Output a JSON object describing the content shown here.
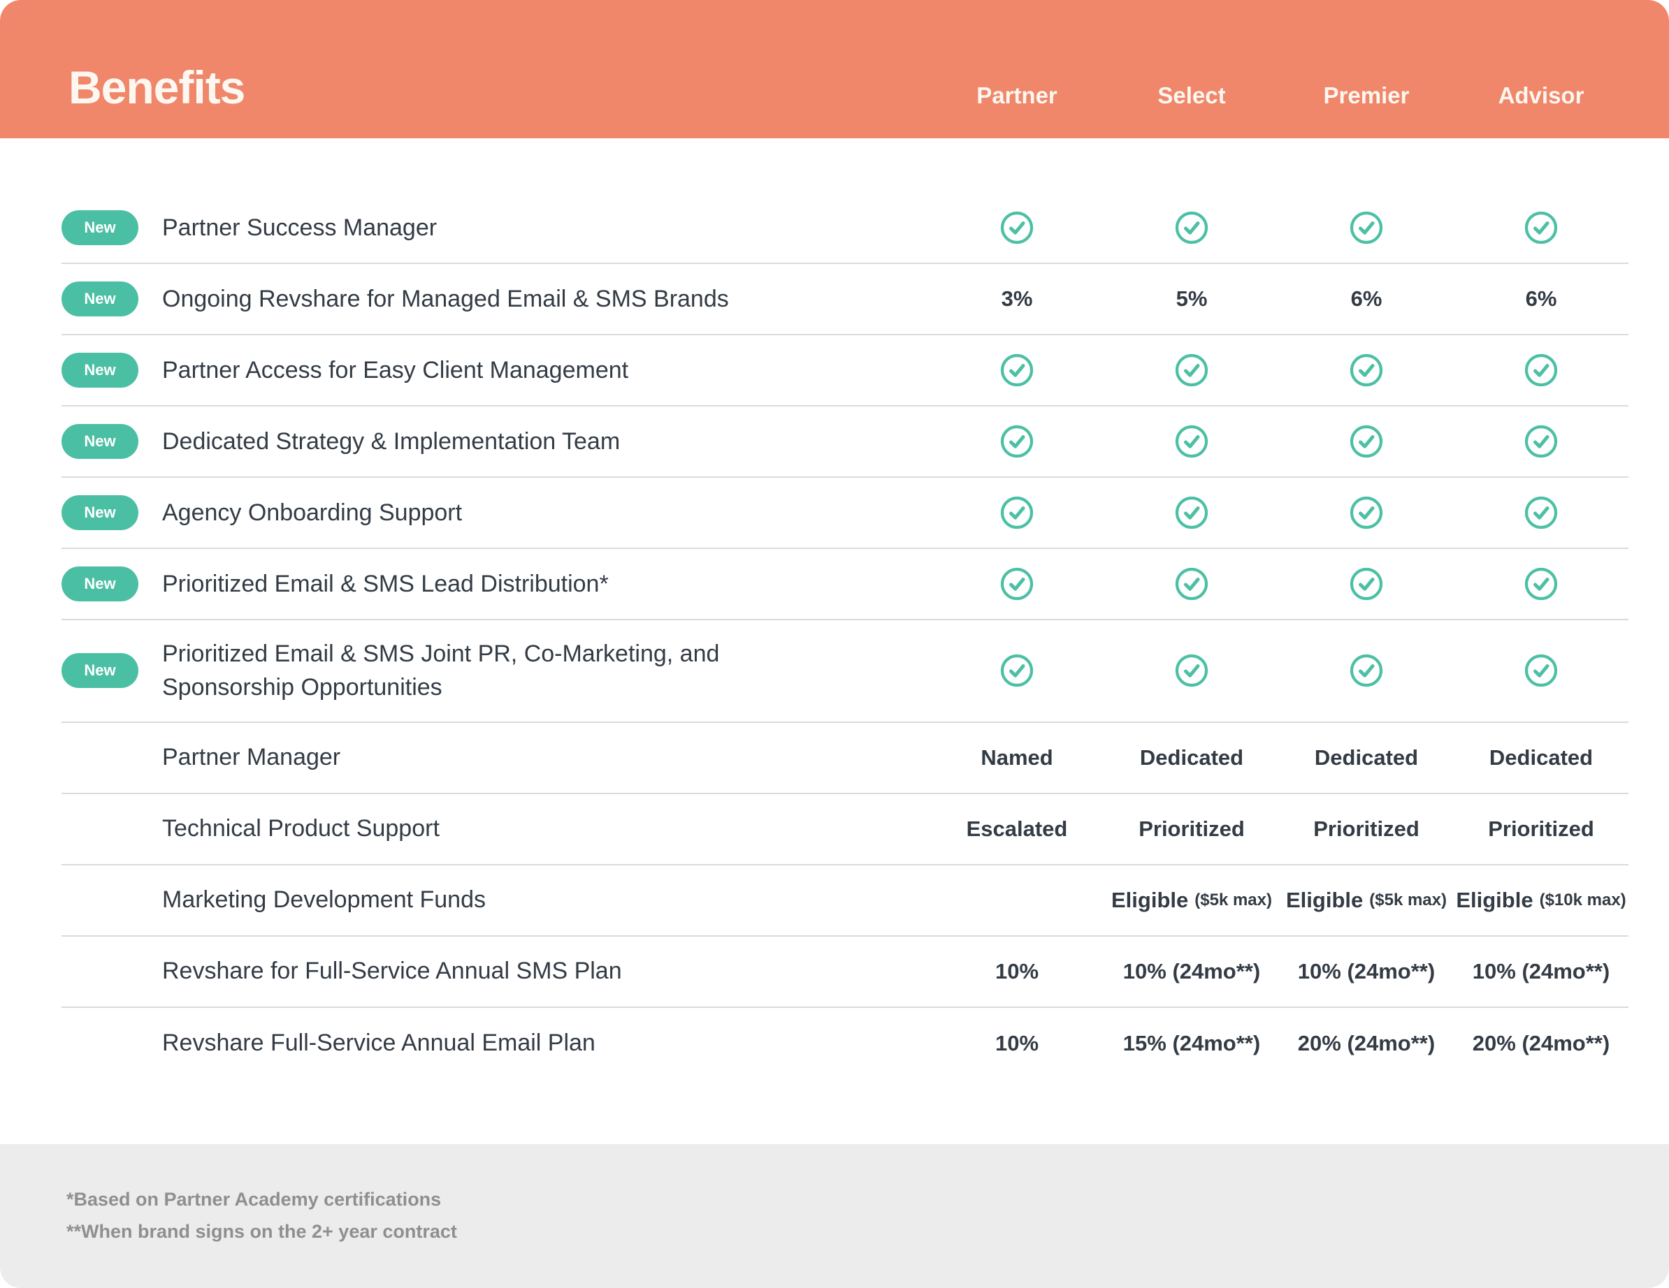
{
  "card": {
    "title": "Benefits"
  },
  "columns": [
    "Partner",
    "Select",
    "Premier",
    "Advisor"
  ],
  "badge_label": "New",
  "rows": [
    {
      "badge": true,
      "label": "Partner Success Manager",
      "cells": [
        {
          "check": true
        },
        {
          "check": true
        },
        {
          "check": true
        },
        {
          "check": true
        }
      ]
    },
    {
      "badge": true,
      "label": "Ongoing Revshare for Managed Email & SMS Brands",
      "cells": [
        {
          "text": "3%"
        },
        {
          "text": "5%"
        },
        {
          "text": "6%"
        },
        {
          "text": "6%"
        }
      ]
    },
    {
      "badge": true,
      "label": "Partner Access for Easy Client Management",
      "cells": [
        {
          "check": true
        },
        {
          "check": true
        },
        {
          "check": true
        },
        {
          "check": true
        }
      ]
    },
    {
      "badge": true,
      "label": "Dedicated Strategy & Implementation Team",
      "cells": [
        {
          "check": true
        },
        {
          "check": true
        },
        {
          "check": true
        },
        {
          "check": true
        }
      ]
    },
    {
      "badge": true,
      "label": "Agency Onboarding Support",
      "cells": [
        {
          "check": true
        },
        {
          "check": true
        },
        {
          "check": true
        },
        {
          "check": true
        }
      ]
    },
    {
      "badge": true,
      "label": "Prioritized Email & SMS Lead Distribution*",
      "cells": [
        {
          "check": true
        },
        {
          "check": true
        },
        {
          "check": true
        },
        {
          "check": true
        }
      ]
    },
    {
      "badge": true,
      "label": "Prioritized Email & SMS Joint PR, Co-Marketing, and\nSponsorship Opportunities",
      "cells": [
        {
          "check": true
        },
        {
          "check": true
        },
        {
          "check": true
        },
        {
          "check": true
        }
      ]
    },
    {
      "badge": false,
      "label": "Partner Manager",
      "cells": [
        {
          "text": "Named"
        },
        {
          "text": "Dedicated"
        },
        {
          "text": "Dedicated"
        },
        {
          "text": "Dedicated"
        }
      ]
    },
    {
      "badge": false,
      "label": "Technical Product Support",
      "cells": [
        {
          "text": "Escalated"
        },
        {
          "text": "Prioritized"
        },
        {
          "text": "Prioritized"
        },
        {
          "text": "Prioritized"
        }
      ]
    },
    {
      "badge": false,
      "label": "Marketing Development Funds",
      "cells": [
        {
          "text": ""
        },
        {
          "text": "Eligible",
          "note": "($5k max)"
        },
        {
          "text": "Eligible",
          "note": "($5k max)"
        },
        {
          "text": "Eligible",
          "note": "($10k max)"
        }
      ]
    },
    {
      "badge": false,
      "label": "Revshare for Full-Service Annual SMS Plan",
      "cells": [
        {
          "text": "10%"
        },
        {
          "text": "10% (24mo**)"
        },
        {
          "text": "10% (24mo**)"
        },
        {
          "text": "10% (24mo**)"
        }
      ]
    },
    {
      "badge": false,
      "label": "Revshare Full-Service Annual Email Plan",
      "cells": [
        {
          "text": "10%"
        },
        {
          "text": "15% (24mo**)"
        },
        {
          "text": "20% (24mo**)"
        },
        {
          "text": "20% (24mo**)"
        }
      ]
    }
  ],
  "footnotes": [
    "*Based on Partner Academy certifications",
    "**When brand signs on the 2+ year contract"
  ],
  "icons": {
    "check": "check-circle-icon"
  },
  "colors": {
    "header_bg": "#F0876B",
    "header_text": "#FCF7F0",
    "badge_bg": "#4BBFA3",
    "check": "#4CC0A4",
    "text": "#333B45",
    "separator": "#DBDBDB",
    "footer_bg": "#ECECEC",
    "footer_text": "#8F8F8F"
  }
}
